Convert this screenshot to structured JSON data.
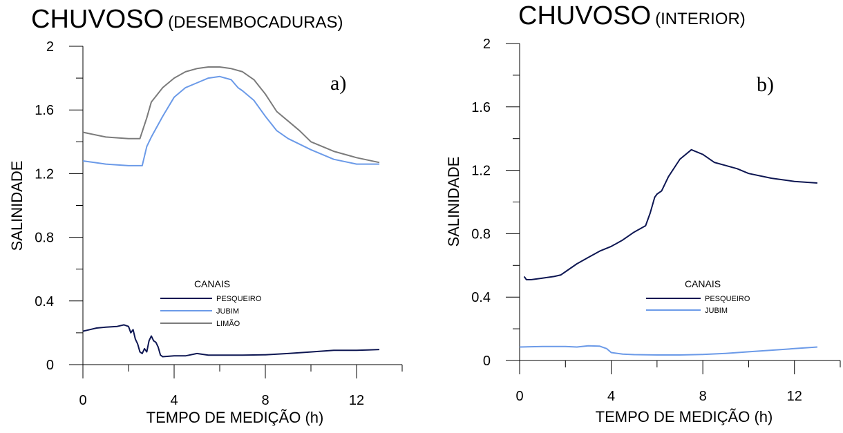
{
  "chart_data": [
    {
      "type": "line",
      "panel_letter": "a)",
      "title": "CHUVOSO",
      "subtitle": "(DESEMBOCADURAS)",
      "xlabel": "TEMPO DE MEDIÇÃO (h)",
      "ylabel": "SALINIDADE",
      "xlim": [
        0,
        14
      ],
      "ylim": [
        0,
        2
      ],
      "x_ticks": [
        0,
        4,
        8,
        12
      ],
      "x_tick_labels": [
        "0",
        "4",
        "8",
        "12"
      ],
      "y_ticks": [
        0,
        0.4,
        0.8,
        1.2,
        1.6,
        2
      ],
      "y_tick_labels": [
        "0",
        "0.4",
        "0.8",
        "1.2",
        "1.6",
        "2"
      ],
      "grid": false,
      "legend": {
        "title": "CANAIS",
        "placement": "lower-center"
      },
      "series": [
        {
          "name": "PESQUEIRO",
          "color": "#0d1652",
          "x": [
            0,
            0.3,
            0.6,
            1.0,
            1.5,
            1.8,
            2.0,
            2.1,
            2.2,
            2.3,
            2.4,
            2.5,
            2.6,
            2.7,
            2.8,
            2.9,
            3.0,
            3.1,
            3.2,
            3.3,
            3.4,
            3.5,
            4.0,
            4.5,
            5.0,
            5.5,
            6.0,
            7.0,
            8.0,
            9.0,
            10.0,
            11.0,
            12.0,
            12.5,
            13.0
          ],
          "y": [
            0.21,
            0.22,
            0.23,
            0.235,
            0.24,
            0.25,
            0.24,
            0.2,
            0.22,
            0.16,
            0.13,
            0.08,
            0.07,
            0.1,
            0.08,
            0.15,
            0.18,
            0.15,
            0.14,
            0.11,
            0.06,
            0.05,
            0.055,
            0.055,
            0.07,
            0.06,
            0.06,
            0.06,
            0.062,
            0.07,
            0.08,
            0.09,
            0.09,
            0.092,
            0.095
          ]
        },
        {
          "name": "JUBIM",
          "color": "#6b9ae8",
          "x": [
            0,
            0.5,
            1.0,
            2.0,
            2.6,
            2.8,
            3.0,
            3.5,
            4.0,
            4.5,
            5.0,
            5.5,
            6.0,
            6.5,
            6.8,
            7.0,
            7.5,
            8.0,
            8.5,
            9.0,
            10.0,
            11.0,
            12.0,
            12.5,
            13.0
          ],
          "y": [
            1.28,
            1.27,
            1.26,
            1.25,
            1.25,
            1.37,
            1.43,
            1.56,
            1.68,
            1.74,
            1.77,
            1.8,
            1.81,
            1.79,
            1.74,
            1.72,
            1.66,
            1.56,
            1.47,
            1.42,
            1.35,
            1.29,
            1.26,
            1.26,
            1.26
          ]
        },
        {
          "name": "LIMÃO",
          "color": "#7b7b7b",
          "x": [
            0,
            1.0,
            2.0,
            2.5,
            2.8,
            3.0,
            3.5,
            4.0,
            4.5,
            5.0,
            5.5,
            6.0,
            6.5,
            7.0,
            7.5,
            8.0,
            8.5,
            9.0,
            9.5,
            10.0,
            11.0,
            12.0,
            13.0
          ],
          "y": [
            1.46,
            1.43,
            1.42,
            1.42,
            1.55,
            1.65,
            1.74,
            1.8,
            1.84,
            1.86,
            1.87,
            1.87,
            1.86,
            1.84,
            1.79,
            1.7,
            1.59,
            1.53,
            1.47,
            1.4,
            1.34,
            1.3,
            1.27
          ]
        }
      ]
    },
    {
      "type": "line",
      "panel_letter": "b)",
      "title": "CHUVOSO",
      "subtitle": "(INTERIOR)",
      "xlabel": "TEMPO DE MEDIÇÃO (h)",
      "ylabel": "SALINIDADE",
      "xlim": [
        0,
        14
      ],
      "ylim": [
        0,
        2
      ],
      "x_ticks": [
        0,
        4,
        8,
        12
      ],
      "x_tick_labels": [
        "0",
        "4",
        "8",
        "12"
      ],
      "y_ticks": [
        0,
        0.4,
        0.8,
        1.2,
        1.6,
        2
      ],
      "y_tick_labels": [
        "0",
        "0.4",
        "0.8",
        "1.2",
        "1.6",
        "2"
      ],
      "grid": false,
      "legend": {
        "title": "CANAIS",
        "placement": "lower-right"
      },
      "series": [
        {
          "name": "PESQUEIRO",
          "color": "#0d1652",
          "x": [
            0.2,
            0.3,
            0.5,
            1.0,
            1.5,
            1.8,
            2.0,
            2.5,
            3.0,
            3.5,
            4.0,
            4.5,
            5.0,
            5.5,
            5.7,
            5.9,
            6.0,
            6.2,
            6.5,
            7.0,
            7.5,
            8.0,
            8.5,
            9.0,
            9.5,
            10.0,
            11.0,
            12.0,
            13.0
          ],
          "y": [
            0.53,
            0.51,
            0.51,
            0.52,
            0.53,
            0.54,
            0.56,
            0.61,
            0.65,
            0.69,
            0.72,
            0.76,
            0.81,
            0.85,
            0.93,
            1.03,
            1.05,
            1.07,
            1.16,
            1.27,
            1.33,
            1.3,
            1.25,
            1.23,
            1.21,
            1.18,
            1.15,
            1.13,
            1.12
          ]
        },
        {
          "name": "JUBIM",
          "color": "#6b9ae8",
          "x": [
            0,
            1.0,
            2.0,
            2.5,
            3.0,
            3.5,
            3.8,
            4.0,
            4.5,
            5.0,
            6.0,
            7.0,
            8.0,
            9.0,
            10.0,
            11.0,
            12.0,
            13.0
          ],
          "y": [
            0.085,
            0.088,
            0.088,
            0.085,
            0.093,
            0.09,
            0.075,
            0.05,
            0.04,
            0.037,
            0.035,
            0.035,
            0.038,
            0.045,
            0.055,
            0.065,
            0.075,
            0.085
          ]
        }
      ]
    }
  ]
}
